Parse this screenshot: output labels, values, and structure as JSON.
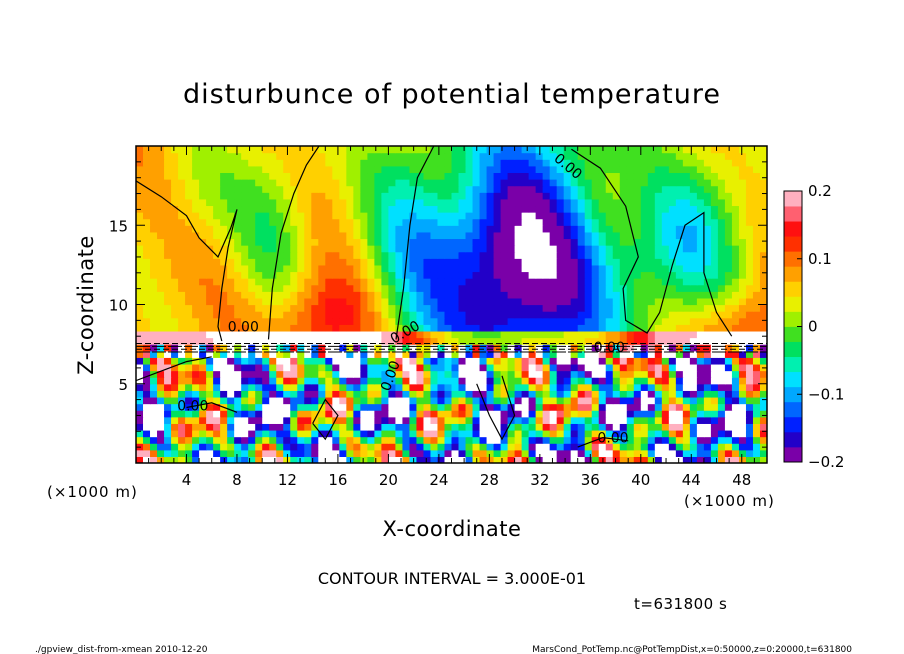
{
  "chart_data": {
    "type": "heatmap",
    "title": "disturbunce of potential temperature",
    "xlabel": "X-coordinate",
    "ylabel": "Z-coordinate",
    "x_unit_label": "(×1000 m)",
    "y_unit_label": "(×1000 m)",
    "xlim": [
      0,
      50
    ],
    "ylim": [
      0,
      20
    ],
    "x_ticks": [
      4,
      8,
      12,
      16,
      20,
      24,
      28,
      32,
      36,
      40,
      44,
      48
    ],
    "y_ticks": [
      5,
      10,
      15
    ],
    "colorbar": {
      "range": [
        -0.2,
        0.2
      ],
      "ticks": [
        0.2,
        0.1,
        0,
        -0.1,
        -0.2
      ],
      "tick_labels": [
        "0.2",
        "0.1",
        "0",
        "−0.1",
        "−0.2"
      ],
      "colors": [
        "#7a00a8",
        "#2200c8",
        "#0020ff",
        "#0066ff",
        "#00a8ff",
        "#00e0ff",
        "#00f0b0",
        "#00e060",
        "#40e020",
        "#a0f000",
        "#e8f000",
        "#ffd000",
        "#ffa000",
        "#ff7000",
        "#ff3000",
        "#ff1010",
        "#ff6070",
        "#ffb0c0"
      ]
    },
    "contour_label": "0.00",
    "contour_interval_text": "CONTOUR INTERVAL = 3.000E-01",
    "time_text": "t=631800 s",
    "footer_left": "./gpview_dist-from-xmean  2010-12-20",
    "footer_right": "MarsCond_PotTemp.nc@PotTempDist,x=0:50000,z=0:20000,t=631800"
  }
}
